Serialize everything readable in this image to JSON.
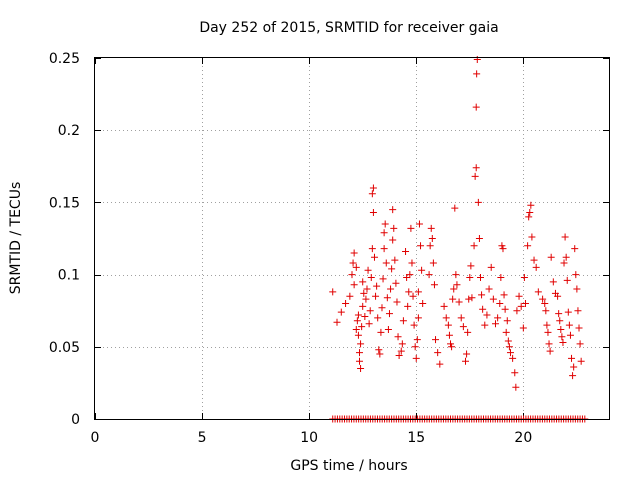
{
  "chart_data": {
    "type": "scatter",
    "title": "Day 252 of 2015, SRMTID for receiver gaia",
    "xlabel": "GPS time / hours",
    "ylabel": "SRMTID / TECUs",
    "xlim": [
      0,
      24
    ],
    "ylim": [
      0,
      0.25
    ],
    "xticks": [
      0,
      5,
      10,
      15,
      20
    ],
    "xtick_labels": [
      "0",
      "5",
      "10",
      "15",
      "20"
    ],
    "yticks": [
      0,
      0.05,
      0.1,
      0.15,
      0.2,
      0.25
    ],
    "ytick_labels": [
      "0",
      "0.05",
      "0.1",
      "0.15",
      "0.2",
      "0.25"
    ],
    "grid": true,
    "marker": "+",
    "color": "#e00000",
    "series": [
      {
        "name": "SRMTID",
        "points": [
          [
            11.1,
            0.088
          ],
          [
            11.3,
            0.067
          ],
          [
            11.5,
            0.074
          ],
          [
            11.7,
            0.08
          ],
          [
            11.9,
            0.085
          ],
          [
            12.0,
            0.1
          ],
          [
            12.05,
            0.108
          ],
          [
            12.1,
            0.093
          ],
          [
            12.1,
            0.115
          ],
          [
            12.2,
            0.105
          ],
          [
            12.2,
            0.062
          ],
          [
            12.25,
            0.068
          ],
          [
            12.3,
            0.072
          ],
          [
            12.3,
            0.058
          ],
          [
            12.35,
            0.046
          ],
          [
            12.35,
            0.04
          ],
          [
            12.4,
            0.035
          ],
          [
            12.4,
            0.052
          ],
          [
            12.45,
            0.064
          ],
          [
            12.5,
            0.078
          ],
          [
            12.5,
            0.095
          ],
          [
            12.55,
            0.087
          ],
          [
            12.6,
            0.071
          ],
          [
            12.65,
            0.083
          ],
          [
            12.7,
            0.09
          ],
          [
            12.75,
            0.103
          ],
          [
            12.8,
            0.066
          ],
          [
            12.85,
            0.075
          ],
          [
            12.9,
            0.098
          ],
          [
            12.95,
            0.118
          ],
          [
            12.95,
            0.156
          ],
          [
            13.0,
            0.16
          ],
          [
            13.0,
            0.143
          ],
          [
            13.05,
            0.112
          ],
          [
            13.1,
            0.085
          ],
          [
            13.15,
            0.092
          ],
          [
            13.2,
            0.07
          ],
          [
            13.25,
            0.048
          ],
          [
            13.3,
            0.045
          ],
          [
            13.35,
            0.06
          ],
          [
            13.4,
            0.077
          ],
          [
            13.45,
            0.097
          ],
          [
            13.5,
            0.118
          ],
          [
            13.5,
            0.129
          ],
          [
            13.55,
            0.135
          ],
          [
            13.6,
            0.108
          ],
          [
            13.65,
            0.084
          ],
          [
            13.7,
            0.062
          ],
          [
            13.75,
            0.073
          ],
          [
            13.8,
            0.09
          ],
          [
            13.85,
            0.104
          ],
          [
            13.9,
            0.124
          ],
          [
            13.9,
            0.145
          ],
          [
            13.95,
            0.132
          ],
          [
            14.0,
            0.11
          ],
          [
            14.05,
            0.094
          ],
          [
            14.1,
            0.081
          ],
          [
            14.15,
            0.057
          ],
          [
            14.2,
            0.044
          ],
          [
            14.3,
            0.047
          ],
          [
            14.35,
            0.052
          ],
          [
            14.4,
            0.068
          ],
          [
            14.5,
            0.116
          ],
          [
            14.55,
            0.098
          ],
          [
            14.6,
            0.078
          ],
          [
            14.65,
            0.088
          ],
          [
            14.7,
            0.1
          ],
          [
            14.75,
            0.132
          ],
          [
            14.8,
            0.108
          ],
          [
            14.85,
            0.085
          ],
          [
            14.9,
            0.065
          ],
          [
            14.95,
            0.05
          ],
          [
            15.0,
            0.042
          ],
          [
            15.05,
            0.055
          ],
          [
            15.1,
            0.07
          ],
          [
            15.1,
            0.088
          ],
          [
            15.15,
            0.135
          ],
          [
            15.2,
            0.12
          ],
          [
            15.25,
            0.103
          ],
          [
            15.3,
            0.08
          ],
          [
            15.6,
            0.1
          ],
          [
            15.65,
            0.12
          ],
          [
            15.7,
            0.132
          ],
          [
            15.75,
            0.125
          ],
          [
            15.8,
            0.108
          ],
          [
            15.85,
            0.093
          ],
          [
            15.9,
            0.055
          ],
          [
            16.0,
            0.046
          ],
          [
            16.1,
            0.038
          ],
          [
            16.3,
            0.078
          ],
          [
            16.4,
            0.07
          ],
          [
            16.5,
            0.065
          ],
          [
            16.55,
            0.058
          ],
          [
            16.6,
            0.052
          ],
          [
            16.65,
            0.05
          ],
          [
            16.7,
            0.083
          ],
          [
            16.75,
            0.09
          ],
          [
            16.8,
            0.146
          ],
          [
            16.85,
            0.1
          ],
          [
            16.9,
            0.093
          ],
          [
            17.0,
            0.081
          ],
          [
            17.1,
            0.07
          ],
          [
            17.2,
            0.064
          ],
          [
            17.3,
            0.04
          ],
          [
            17.35,
            0.045
          ],
          [
            17.4,
            0.06
          ],
          [
            17.45,
            0.083
          ],
          [
            17.5,
            0.098
          ],
          [
            17.55,
            0.106
          ],
          [
            17.6,
            0.084
          ],
          [
            17.7,
            0.12
          ],
          [
            17.75,
            0.168
          ],
          [
            17.8,
            0.174
          ],
          [
            17.8,
            0.216
          ],
          [
            17.82,
            0.239
          ],
          [
            17.85,
            0.249
          ],
          [
            17.9,
            0.15
          ],
          [
            17.95,
            0.125
          ],
          [
            18.0,
            0.098
          ],
          [
            18.05,
            0.086
          ],
          [
            18.1,
            0.076
          ],
          [
            18.2,
            0.065
          ],
          [
            18.3,
            0.072
          ],
          [
            18.4,
            0.09
          ],
          [
            18.5,
            0.105
          ],
          [
            18.6,
            0.083
          ],
          [
            18.7,
            0.066
          ],
          [
            18.8,
            0.07
          ],
          [
            18.9,
            0.08
          ],
          [
            18.95,
            0.098
          ],
          [
            19.0,
            0.12
          ],
          [
            19.05,
            0.118
          ],
          [
            19.1,
            0.086
          ],
          [
            19.15,
            0.076
          ],
          [
            19.2,
            0.06
          ],
          [
            19.25,
            0.068
          ],
          [
            19.3,
            0.054
          ],
          [
            19.35,
            0.05
          ],
          [
            19.4,
            0.046
          ],
          [
            19.5,
            0.042
          ],
          [
            19.6,
            0.032
          ],
          [
            19.65,
            0.022
          ],
          [
            19.7,
            0.075
          ],
          [
            19.8,
            0.085
          ],
          [
            19.9,
            0.078
          ],
          [
            20.0,
            0.063
          ],
          [
            20.05,
            0.098
          ],
          [
            20.1,
            0.08
          ],
          [
            20.2,
            0.12
          ],
          [
            20.25,
            0.14
          ],
          [
            20.3,
            0.143
          ],
          [
            20.35,
            0.148
          ],
          [
            20.4,
            0.126
          ],
          [
            20.5,
            0.11
          ],
          [
            20.6,
            0.105
          ],
          [
            20.7,
            0.088
          ],
          [
            20.9,
            0.083
          ],
          [
            21.0,
            0.08
          ],
          [
            21.05,
            0.075
          ],
          [
            21.1,
            0.065
          ],
          [
            21.15,
            0.06
          ],
          [
            21.2,
            0.052
          ],
          [
            21.25,
            0.047
          ],
          [
            21.3,
            0.112
          ],
          [
            21.4,
            0.095
          ],
          [
            21.5,
            0.087
          ],
          [
            21.6,
            0.085
          ],
          [
            21.65,
            0.073
          ],
          [
            21.7,
            0.068
          ],
          [
            21.75,
            0.062
          ],
          [
            21.8,
            0.057
          ],
          [
            21.85,
            0.053
          ],
          [
            21.9,
            0.108
          ],
          [
            21.95,
            0.126
          ],
          [
            22.0,
            0.112
          ],
          [
            22.05,
            0.096
          ],
          [
            22.1,
            0.074
          ],
          [
            22.15,
            0.065
          ],
          [
            22.2,
            0.058
          ],
          [
            22.25,
            0.042
          ],
          [
            22.3,
            0.03
          ],
          [
            22.35,
            0.036
          ],
          [
            22.4,
            0.118
          ],
          [
            22.45,
            0.1
          ],
          [
            22.5,
            0.09
          ],
          [
            22.55,
            0.075
          ],
          [
            22.6,
            0.063
          ],
          [
            22.65,
            0.052
          ],
          [
            22.7,
            0.04
          ]
        ]
      },
      {
        "name": "zero-level samples",
        "x_start": 11.1,
        "x_end": 22.9,
        "x_step": 0.11,
        "y": 0
      }
    ]
  }
}
